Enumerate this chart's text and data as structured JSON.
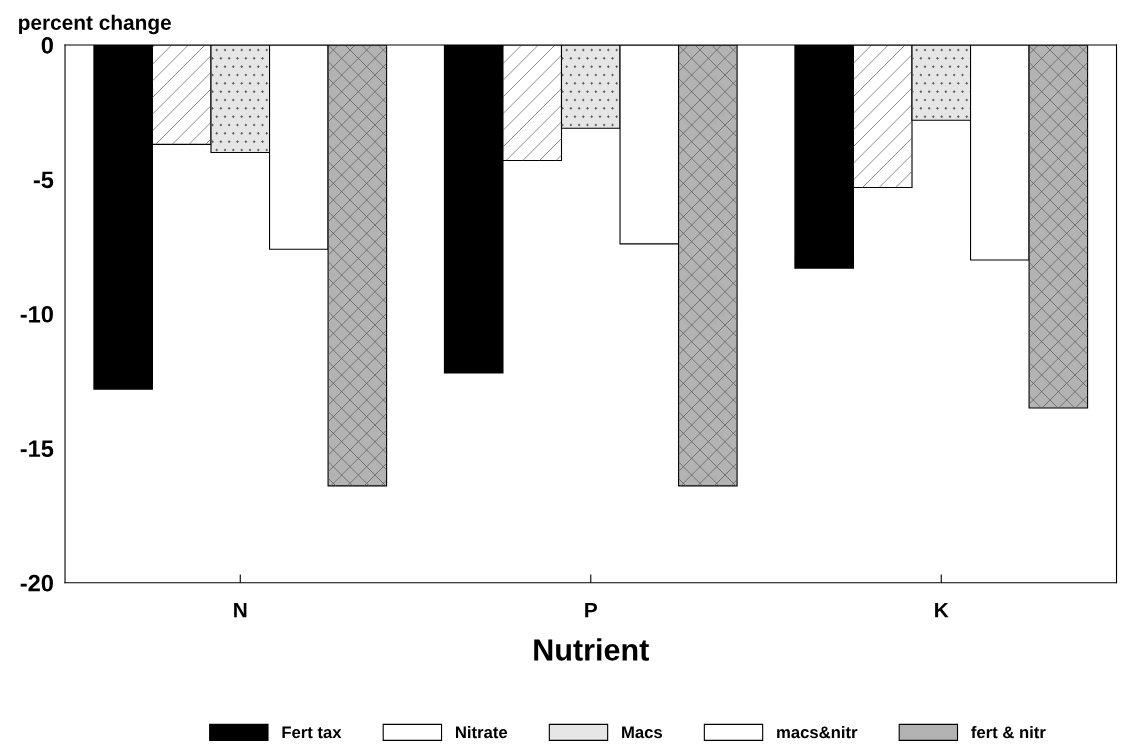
{
  "chart_data": {
    "type": "bar",
    "ylabel": "percent change",
    "xlabel": "Nutrient",
    "categories": [
      "N",
      "P",
      "K"
    ],
    "series": [
      {
        "name": "Fert tax",
        "color": "#000000",
        "values": [
          -12.8,
          -12.2,
          -8.3
        ]
      },
      {
        "name": "Nitrate",
        "color": "#ffffff",
        "values": [
          -3.7,
          -4.3,
          -5.3
        ]
      },
      {
        "name": "Macs",
        "color": "#e6e6e6",
        "values": [
          -4.0,
          -3.1,
          -2.8
        ]
      },
      {
        "name": "macs&nitr",
        "color": "#ffffff",
        "values": [
          -7.6,
          -7.4,
          -8.0
        ]
      },
      {
        "name": "fert & nitr",
        "color": "#b3b3b3",
        "values": [
          -16.4,
          -16.4,
          -13.5
        ]
      }
    ],
    "ylim": [
      -20,
      0
    ],
    "yticks": [
      {
        "value": -20,
        "label": "-20"
      },
      {
        "value": -15,
        "label": "-15"
      },
      {
        "value": -10,
        "label": "-10"
      },
      {
        "value": -5,
        "label": "-5"
      },
      0
    ],
    "grid": false,
    "legend": "bottom"
  }
}
